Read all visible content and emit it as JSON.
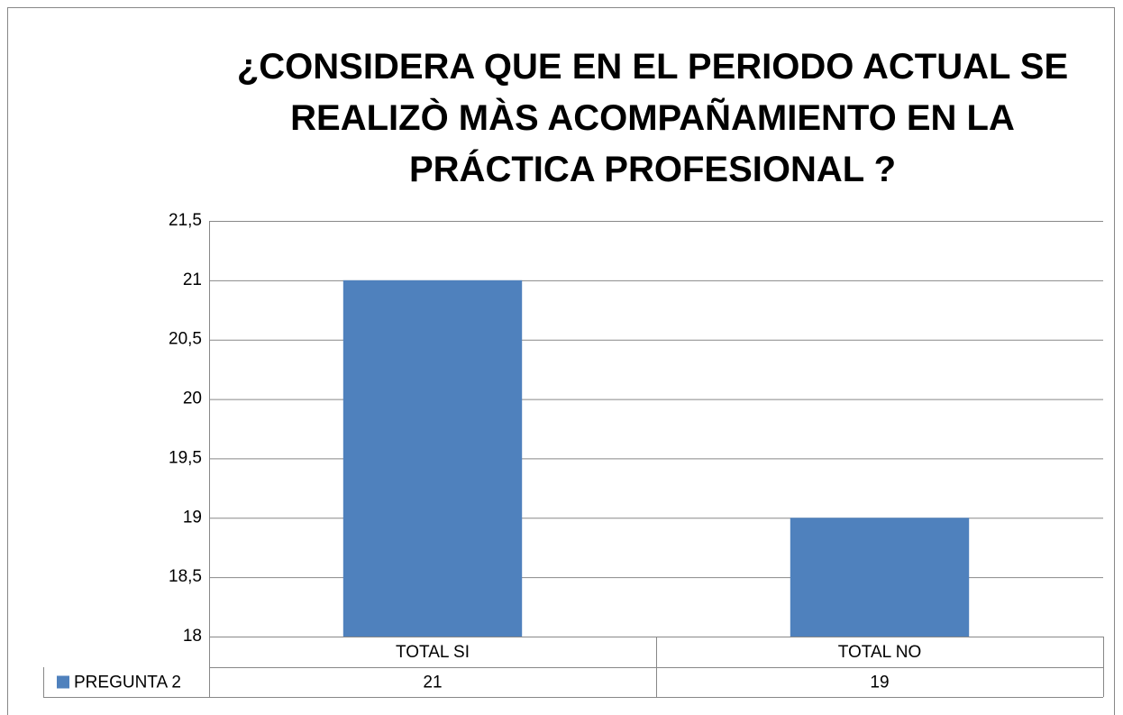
{
  "chart_data": {
    "type": "bar",
    "title": "¿CONSIDERA QUE EN EL PERIODO  ACTUAL SE\nREALIZÒ MÀS ACOMPAÑAMIENTO EN LA\nPRÁCTICA PROFESIONAL ?",
    "categories": [
      "TOTAL SI",
      "TOTAL NO"
    ],
    "series": [
      {
        "name": "PREGUNTA 2",
        "color": "#4f81bd",
        "values": [
          21,
          19
        ]
      }
    ],
    "ylim": [
      18,
      21.5
    ],
    "yticks": [
      18,
      {
        "value": 18.5,
        "label": "18,5"
      },
      19,
      {
        "value": 19.5,
        "label": "19,5"
      },
      20,
      {
        "value": 20.5,
        "label": "20,5"
      },
      21,
      {
        "value": 21.5,
        "label": "21,5"
      }
    ],
    "grid": true
  }
}
